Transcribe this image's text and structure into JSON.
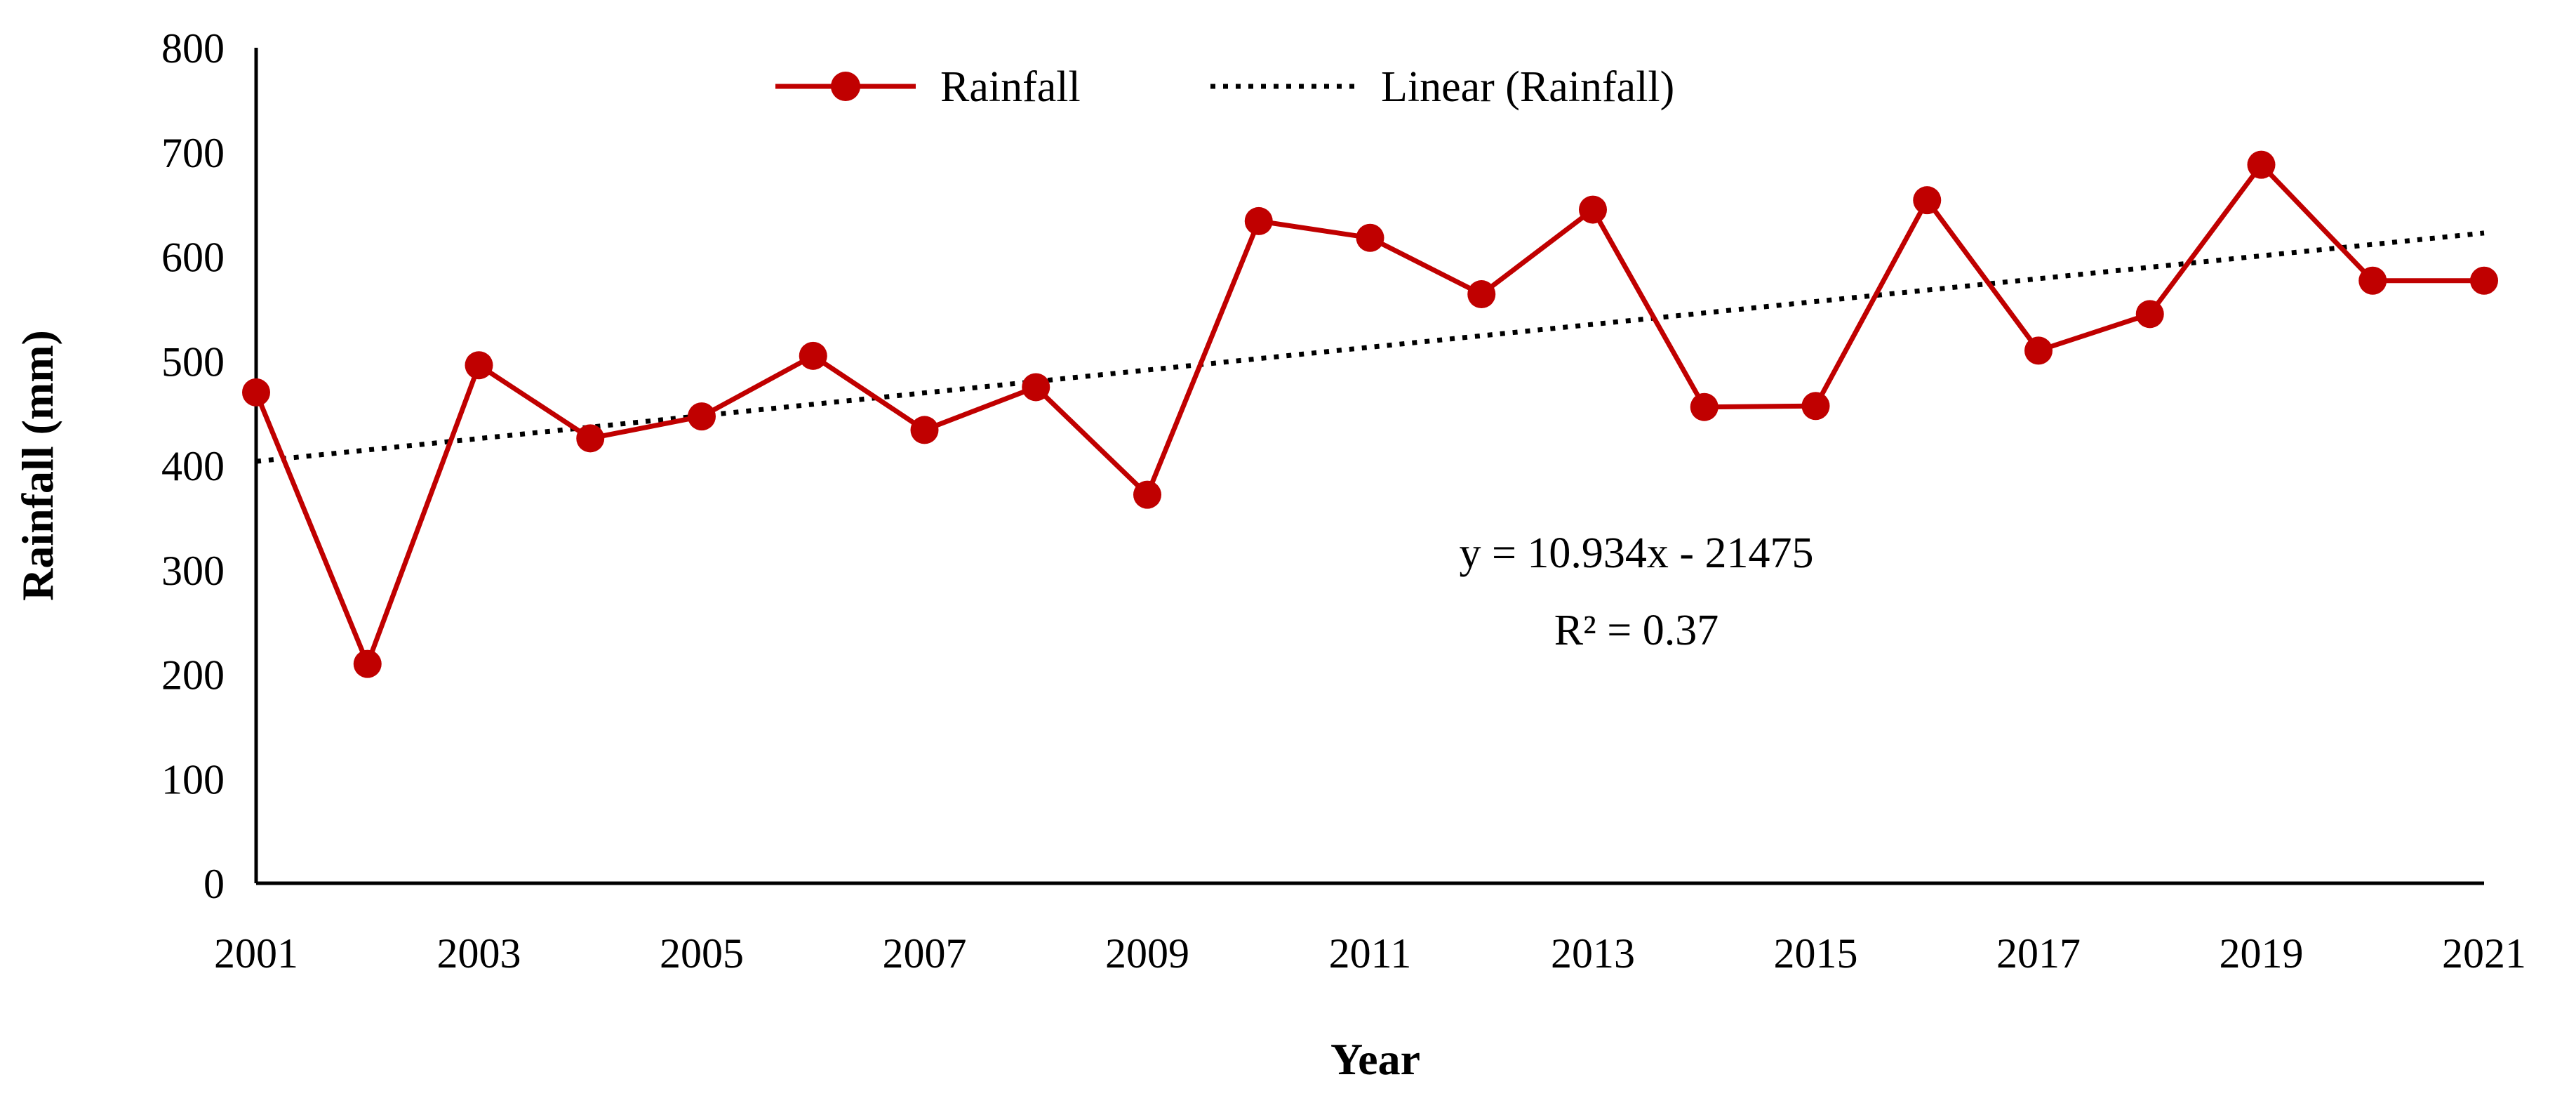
{
  "chart_data": {
    "type": "line",
    "title": "",
    "xlabel": "Year",
    "ylabel": "Rainfall (mm)",
    "ylim": [
      0,
      800
    ],
    "xlim": [
      2001,
      2021
    ],
    "yticks": [
      "0",
      "100",
      "200",
      "300",
      "400",
      "500",
      "600",
      "700",
      "800"
    ],
    "xticks": [
      "2001",
      "2003",
      "2005",
      "2007",
      "2009",
      "2011",
      "2013",
      "2015",
      "2017",
      "2019",
      "2021"
    ],
    "grid": false,
    "legend_position": "top-center",
    "series": [
      {
        "name": "Rainfall",
        "color": "#C00000",
        "marker": "circle",
        "x": [
          2001,
          2002,
          2003,
          2004,
          2005,
          2006,
          2007,
          2008,
          2009,
          2010,
          2011,
          2012,
          2013,
          2014,
          2015,
          2016,
          2017,
          2018,
          2019,
          2020,
          2021
        ],
        "values": [
          470,
          210,
          496,
          426,
          447,
          505,
          434,
          475,
          372,
          634,
          618,
          564,
          645,
          456,
          457,
          654,
          510,
          545,
          688,
          577,
          577
        ]
      }
    ],
    "trendline": {
      "name": "Linear (Rainfall)",
      "style": "dotted",
      "color": "#000000",
      "slope": 10.934,
      "intercept": -21475,
      "equation_text": "y = 10.934x - 21475",
      "r2_text": "R² = 0.37"
    }
  }
}
